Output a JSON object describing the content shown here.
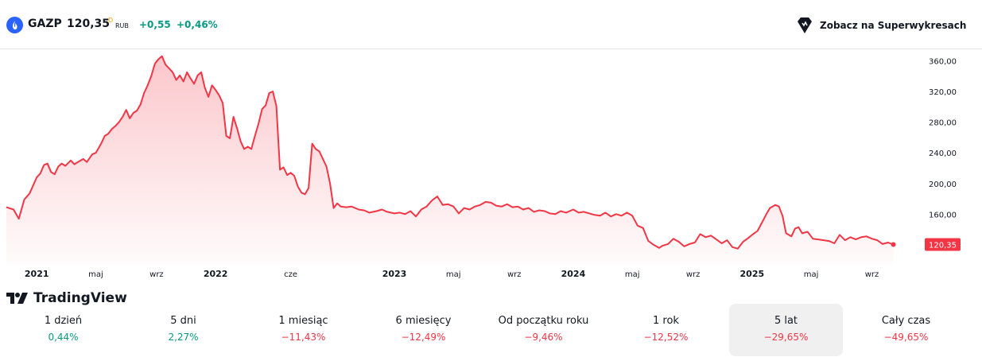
{
  "header": {
    "symbol": "GAZP",
    "price": "120,35",
    "price_superscript": "D",
    "currency": "RUB",
    "change_abs": "+0,55",
    "change_pct": "+0,46%",
    "superchart_label": "Zobacz na Superwykresach"
  },
  "watermark": "TradingView",
  "colors": {
    "line": "#f23645",
    "positive": "#089981",
    "negative": "#f23645",
    "price_badge": "#f23645"
  },
  "periods": [
    {
      "label": "1 dzień",
      "value": "0,44%",
      "sign": "positive"
    },
    {
      "label": "5 dni",
      "value": "2,27%",
      "sign": "positive"
    },
    {
      "label": "1 miesiąc",
      "value": "−11,43%",
      "sign": "negative"
    },
    {
      "label": "6 miesięcy",
      "value": "−12,49%",
      "sign": "negative"
    },
    {
      "label": "Od początku roku",
      "value": "−9,46%",
      "sign": "negative"
    },
    {
      "label": "1 rok",
      "value": "−12,52%",
      "sign": "negative"
    },
    {
      "label": "5 lat",
      "value": "−29,65%",
      "sign": "negative",
      "active": true
    },
    {
      "label": "Cały czas",
      "value": "−49,65%",
      "sign": "negative"
    }
  ],
  "chart_data": {
    "type": "area",
    "x_ticks": [
      {
        "label": "2021",
        "bold": true,
        "t": 2021.0
      },
      {
        "label": "maj",
        "bold": false,
        "t": 2021.33
      },
      {
        "label": "wrz",
        "bold": false,
        "t": 2021.67
      },
      {
        "label": "2022",
        "bold": true,
        "t": 2022.0
      },
      {
        "label": "cze",
        "bold": false,
        "t": 2022.42
      },
      {
        "label": "2023",
        "bold": true,
        "t": 2023.0
      },
      {
        "label": "maj",
        "bold": false,
        "t": 2023.33
      },
      {
        "label": "wrz",
        "bold": false,
        "t": 2023.67
      },
      {
        "label": "2024",
        "bold": true,
        "t": 2024.0
      },
      {
        "label": "maj",
        "bold": false,
        "t": 2024.33
      },
      {
        "label": "wrz",
        "bold": false,
        "t": 2024.67
      },
      {
        "label": "2025",
        "bold": true,
        "t": 2025.0
      },
      {
        "label": "maj",
        "bold": false,
        "t": 2025.33
      },
      {
        "label": "wrz",
        "bold": false,
        "t": 2025.67
      }
    ],
    "y_ticks": [
      {
        "label": "360,00",
        "value": 360
      },
      {
        "label": "320,00",
        "value": 320
      },
      {
        "label": "280,00",
        "value": 280
      },
      {
        "label": "240,00",
        "value": 240
      },
      {
        "label": "200,00",
        "value": 200
      },
      {
        "label": "160,00",
        "value": 160
      }
    ],
    "ylim": [
      95,
      375
    ],
    "xlim": [
      2020.83,
      2025.93
    ],
    "last_price_label": "120,35",
    "series": [
      {
        "values": [
          [
            2020.83,
            169
          ],
          [
            2020.87,
            166
          ],
          [
            2020.9,
            154
          ],
          [
            2020.93,
            179
          ],
          [
            2020.96,
            187
          ],
          [
            2021.0,
            208
          ],
          [
            2021.02,
            213
          ],
          [
            2021.04,
            224
          ],
          [
            2021.06,
            226
          ],
          [
            2021.08,
            215
          ],
          [
            2021.1,
            212
          ],
          [
            2021.12,
            222
          ],
          [
            2021.14,
            226
          ],
          [
            2021.16,
            223
          ],
          [
            2021.19,
            230
          ],
          [
            2021.21,
            225
          ],
          [
            2021.23,
            228
          ],
          [
            2021.26,
            232
          ],
          [
            2021.28,
            228
          ],
          [
            2021.31,
            238
          ],
          [
            2021.33,
            240
          ],
          [
            2021.36,
            252
          ],
          [
            2021.38,
            262
          ],
          [
            2021.4,
            265
          ],
          [
            2021.42,
            271
          ],
          [
            2021.44,
            275
          ],
          [
            2021.46,
            280
          ],
          [
            2021.48,
            287
          ],
          [
            2021.5,
            296
          ],
          [
            2021.52,
            285
          ],
          [
            2021.54,
            292
          ],
          [
            2021.56,
            295
          ],
          [
            2021.58,
            303
          ],
          [
            2021.6,
            318
          ],
          [
            2021.62,
            328
          ],
          [
            2021.64,
            340
          ],
          [
            2021.66,
            356
          ],
          [
            2021.68,
            362
          ],
          [
            2021.7,
            366
          ],
          [
            2021.72,
            355
          ],
          [
            2021.74,
            350
          ],
          [
            2021.76,
            345
          ],
          [
            2021.78,
            335
          ],
          [
            2021.8,
            341
          ],
          [
            2021.82,
            333
          ],
          [
            2021.84,
            345
          ],
          [
            2021.86,
            337
          ],
          [
            2021.88,
            330
          ],
          [
            2021.9,
            341
          ],
          [
            2021.92,
            345
          ],
          [
            2021.94,
            325
          ],
          [
            2021.96,
            313
          ],
          [
            2021.98,
            328
          ],
          [
            2022.0,
            322
          ],
          [
            2022.02,
            315
          ],
          [
            2022.04,
            305
          ],
          [
            2022.06,
            262
          ],
          [
            2022.08,
            259
          ],
          [
            2022.1,
            287
          ],
          [
            2022.12,
            272
          ],
          [
            2022.14,
            255
          ],
          [
            2022.16,
            245
          ],
          [
            2022.18,
            248
          ],
          [
            2022.2,
            245
          ],
          [
            2022.22,
            262
          ],
          [
            2022.24,
            278
          ],
          [
            2022.26,
            297
          ],
          [
            2022.28,
            302
          ],
          [
            2022.3,
            318
          ],
          [
            2022.32,
            320
          ],
          [
            2022.34,
            301
          ],
          [
            2022.36,
            218
          ],
          [
            2022.38,
            221
          ],
          [
            2022.4,
            211
          ],
          [
            2022.42,
            214
          ],
          [
            2022.44,
            210
          ],
          [
            2022.46,
            196
          ],
          [
            2022.48,
            188
          ],
          [
            2022.5,
            186
          ],
          [
            2022.52,
            194
          ],
          [
            2022.54,
            252
          ],
          [
            2022.56,
            245
          ],
          [
            2022.58,
            242
          ],
          [
            2022.6,
            232
          ],
          [
            2022.62,
            222
          ],
          [
            2022.64,
            200
          ],
          [
            2022.66,
            168
          ],
          [
            2022.68,
            174
          ],
          [
            2022.7,
            170
          ],
          [
            2022.73,
            169
          ],
          [
            2022.76,
            170
          ],
          [
            2022.8,
            166
          ],
          [
            2022.83,
            165
          ],
          [
            2022.86,
            162
          ],
          [
            2022.9,
            164
          ],
          [
            2022.93,
            166
          ],
          [
            2022.96,
            163
          ],
          [
            2023.0,
            161
          ],
          [
            2023.03,
            162
          ],
          [
            2023.06,
            160
          ],
          [
            2023.09,
            164
          ],
          [
            2023.12,
            157
          ],
          [
            2023.15,
            166
          ],
          [
            2023.18,
            170
          ],
          [
            2023.21,
            178
          ],
          [
            2023.24,
            183
          ],
          [
            2023.27,
            172
          ],
          [
            2023.3,
            173
          ],
          [
            2023.33,
            170
          ],
          [
            2023.36,
            161
          ],
          [
            2023.39,
            168
          ],
          [
            2023.42,
            166
          ],
          [
            2023.45,
            170
          ],
          [
            2023.48,
            172
          ],
          [
            2023.51,
            176
          ],
          [
            2023.54,
            175
          ],
          [
            2023.57,
            171
          ],
          [
            2023.6,
            170
          ],
          [
            2023.63,
            173
          ],
          [
            2023.66,
            169
          ],
          [
            2023.69,
            170
          ],
          [
            2023.72,
            166
          ],
          [
            2023.75,
            168
          ],
          [
            2023.78,
            163
          ],
          [
            2023.81,
            165
          ],
          [
            2023.84,
            164
          ],
          [
            2023.87,
            161
          ],
          [
            2023.9,
            160
          ],
          [
            2023.93,
            164
          ],
          [
            2023.96,
            162
          ],
          [
            2024.0,
            166
          ],
          [
            2024.03,
            162
          ],
          [
            2024.06,
            163
          ],
          [
            2024.09,
            161
          ],
          [
            2024.12,
            159
          ],
          [
            2024.15,
            158
          ],
          [
            2024.18,
            162
          ],
          [
            2024.21,
            157
          ],
          [
            2024.24,
            160
          ],
          [
            2024.27,
            158
          ],
          [
            2024.3,
            162
          ],
          [
            2024.33,
            158
          ],
          [
            2024.36,
            145
          ],
          [
            2024.39,
            142
          ],
          [
            2024.42,
            125
          ],
          [
            2024.45,
            120
          ],
          [
            2024.48,
            116
          ],
          [
            2024.5,
            119
          ],
          [
            2024.53,
            121
          ],
          [
            2024.56,
            128
          ],
          [
            2024.59,
            124
          ],
          [
            2024.62,
            118
          ],
          [
            2024.65,
            121
          ],
          [
            2024.68,
            123
          ],
          [
            2024.71,
            134
          ],
          [
            2024.74,
            130
          ],
          [
            2024.77,
            132
          ],
          [
            2024.8,
            127
          ],
          [
            2024.83,
            122
          ],
          [
            2024.86,
            126
          ],
          [
            2024.89,
            117
          ],
          [
            2024.92,
            115
          ],
          [
            2024.95,
            124
          ],
          [
            2024.98,
            129
          ],
          [
            2025.0,
            133
          ],
          [
            2025.03,
            138
          ],
          [
            2025.06,
            151
          ],
          [
            2025.08,
            160
          ],
          [
            2025.1,
            168
          ],
          [
            2025.13,
            172
          ],
          [
            2025.15,
            170
          ],
          [
            2025.17,
            158
          ],
          [
            2025.19,
            135
          ],
          [
            2025.22,
            131
          ],
          [
            2025.24,
            141
          ],
          [
            2025.26,
            143
          ],
          [
            2025.28,
            135
          ],
          [
            2025.31,
            137
          ],
          [
            2025.34,
            128
          ],
          [
            2025.37,
            127
          ],
          [
            2025.4,
            126
          ],
          [
            2025.43,
            125
          ],
          [
            2025.46,
            122
          ],
          [
            2025.49,
            133
          ],
          [
            2025.52,
            126
          ],
          [
            2025.55,
            130
          ],
          [
            2025.58,
            127
          ],
          [
            2025.61,
            130
          ],
          [
            2025.64,
            131
          ],
          [
            2025.67,
            128
          ],
          [
            2025.7,
            126
          ],
          [
            2025.73,
            121
          ],
          [
            2025.76,
            123
          ],
          [
            2025.79,
            120.35
          ]
        ]
      }
    ]
  }
}
